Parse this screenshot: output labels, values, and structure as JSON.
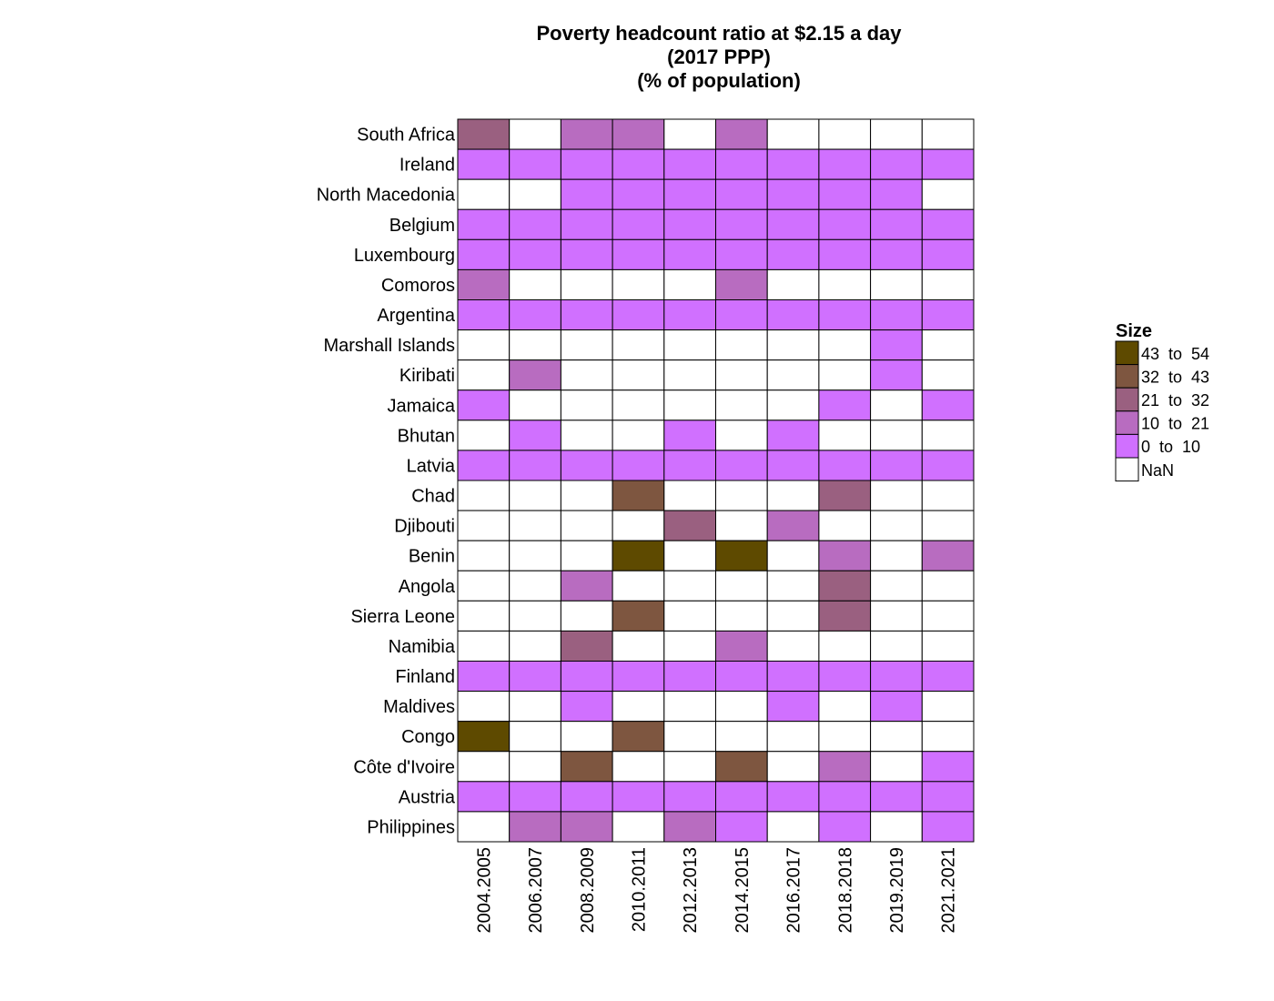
{
  "chart_data": {
    "type": "heatmap",
    "title_lines": [
      "Poverty headcount ratio at $2.15 a day",
      "(2017 PPP)",
      "(% of population)"
    ],
    "x": [
      "2004.2005",
      "2006.2007",
      "2008.2009",
      "2010.2011",
      "2012.2013",
      "2014.2015",
      "2016.2017",
      "2018.2018",
      "2019.2019",
      "2021.2021"
    ],
    "y": [
      "South Africa",
      "Ireland",
      "North Macedonia",
      "Belgium",
      "Luxembourg",
      "Comoros",
      "Argentina",
      "Marshall Islands",
      "Kiribati",
      "Jamaica",
      "Bhutan",
      "Latvia",
      "Chad",
      "Djibouti",
      "Benin",
      "Angola",
      "Sierra Leone",
      "Namibia",
      "Finland",
      "Maldives",
      "Congo",
      "Côte d'Ivoire",
      "Austria",
      "Philippines"
    ],
    "bins": [
      "0  to  10",
      "10  to  21",
      "21  to  32",
      "32  to  43",
      "43  to  54"
    ],
    "nan_label": "NaN",
    "bin_colors": [
      "#d070ff",
      "#b86cc0",
      "#9a6080",
      "#7e5640",
      "#5e4a00"
    ],
    "nan_color": "#ffffff",
    "cells": [
      [
        2,
        null,
        1,
        1,
        null,
        1,
        null,
        null,
        null,
        null
      ],
      [
        0,
        0,
        0,
        0,
        0,
        0,
        0,
        0,
        0,
        0
      ],
      [
        null,
        null,
        0,
        0,
        0,
        0,
        0,
        0,
        0,
        null
      ],
      [
        0,
        0,
        0,
        0,
        0,
        0,
        0,
        0,
        0,
        0
      ],
      [
        0,
        0,
        0,
        0,
        0,
        0,
        0,
        0,
        0,
        0
      ],
      [
        1,
        null,
        null,
        null,
        null,
        1,
        null,
        null,
        null,
        null
      ],
      [
        0,
        0,
        0,
        0,
        0,
        0,
        0,
        0,
        0,
        0
      ],
      [
        null,
        null,
        null,
        null,
        null,
        null,
        null,
        null,
        0,
        null
      ],
      [
        null,
        1,
        null,
        null,
        null,
        null,
        null,
        null,
        0,
        null
      ],
      [
        0,
        null,
        null,
        null,
        null,
        null,
        null,
        0,
        null,
        0
      ],
      [
        null,
        0,
        null,
        null,
        0,
        null,
        0,
        null,
        null,
        null
      ],
      [
        0,
        0,
        0,
        0,
        0,
        0,
        0,
        0,
        0,
        0
      ],
      [
        null,
        null,
        null,
        3,
        null,
        null,
        null,
        2,
        null,
        null
      ],
      [
        null,
        null,
        null,
        null,
        2,
        null,
        1,
        null,
        null,
        null
      ],
      [
        null,
        null,
        null,
        4,
        null,
        4,
        null,
        1,
        null,
        1
      ],
      [
        null,
        null,
        1,
        null,
        null,
        null,
        null,
        2,
        null,
        null
      ],
      [
        null,
        null,
        null,
        3,
        null,
        null,
        null,
        2,
        null,
        null
      ],
      [
        null,
        null,
        2,
        null,
        null,
        1,
        null,
        null,
        null,
        null
      ],
      [
        0,
        0,
        0,
        0,
        0,
        0,
        0,
        0,
        0,
        0
      ],
      [
        null,
        null,
        0,
        null,
        null,
        null,
        0,
        null,
        0,
        null
      ],
      [
        4,
        null,
        null,
        3,
        null,
        null,
        null,
        null,
        null,
        null
      ],
      [
        null,
        null,
        3,
        null,
        null,
        3,
        null,
        1,
        null,
        0
      ],
      [
        0,
        0,
        0,
        0,
        0,
        0,
        0,
        0,
        0,
        0
      ],
      [
        null,
        1,
        1,
        null,
        1,
        0,
        null,
        0,
        null,
        0
      ]
    ],
    "legend": {
      "title": "Size",
      "position": "right",
      "entries": [
        {
          "label": "43  to  54",
          "bin": 4
        },
        {
          "label": "32  to  43",
          "bin": 3
        },
        {
          "label": "21  to  32",
          "bin": 2
        },
        {
          "label": "10  to  21",
          "bin": 1
        },
        {
          "label": "0  to  10",
          "bin": 0
        },
        {
          "label": "NaN",
          "bin": null
        }
      ]
    }
  }
}
